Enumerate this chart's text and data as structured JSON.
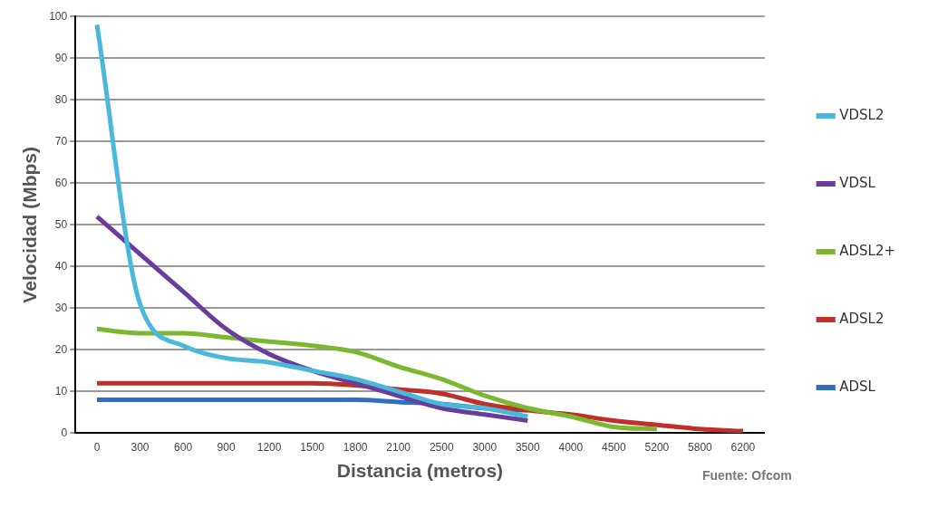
{
  "chart_data": {
    "type": "line",
    "xlabel": "Distancia (metros)",
    "ylabel": "Velocidad (Mbps)",
    "categories": [
      "0",
      "300",
      "600",
      "900",
      "1200",
      "1500",
      "1800",
      "2100",
      "2500",
      "3000",
      "3500",
      "4000",
      "4500",
      "5200",
      "5800",
      "6200"
    ],
    "series": [
      {
        "name": "VDSL2",
        "color": "#4ab8d8",
        "values": [
          98,
          31,
          21,
          18,
          17,
          15,
          13,
          10,
          7,
          6,
          4,
          null,
          null,
          null,
          null,
          null
        ]
      },
      {
        "name": "VDSL",
        "color": "#6a3d9a",
        "values": [
          52,
          43,
          34,
          25,
          19,
          15,
          12,
          9,
          6,
          4.5,
          3,
          null,
          null,
          null,
          null,
          null
        ]
      },
      {
        "name": "ADSL2+",
        "color": "#7cb82f",
        "values": [
          25,
          24,
          24,
          23,
          22,
          21,
          19.5,
          16,
          13,
          9,
          6,
          4,
          1.5,
          1,
          null,
          null
        ]
      },
      {
        "name": "ADSL2",
        "color": "#c0302a",
        "values": [
          12,
          12,
          12,
          12,
          12,
          12,
          11.5,
          10.5,
          9.5,
          7,
          5.5,
          4.5,
          3,
          2,
          1,
          0.5
        ]
      },
      {
        "name": "ADSL",
        "color": "#2e6fc4",
        "values": [
          8,
          8,
          8,
          8,
          8,
          8,
          8,
          7.5,
          7,
          6,
          5.5,
          null,
          null,
          null,
          null,
          null
        ]
      }
    ],
    "ylim": [
      0,
      100
    ],
    "yticks": [
      0,
      10,
      20,
      30,
      40,
      50,
      60,
      70,
      80,
      90,
      100
    ],
    "grid": "y",
    "legend": "right",
    "marker": "none",
    "line_style": "solid",
    "annotations": [
      "Fuente: Ofcom"
    ]
  }
}
